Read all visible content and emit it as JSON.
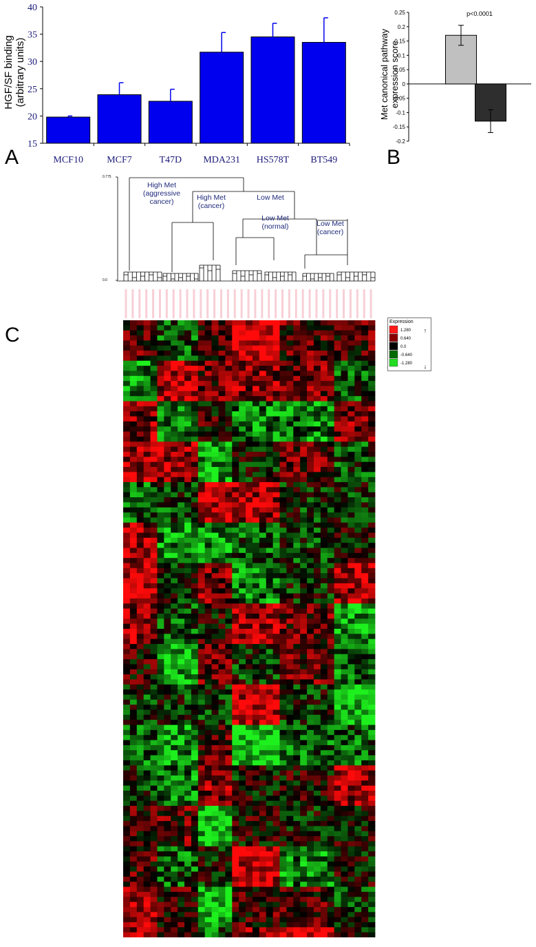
{
  "chart_data": [
    {
      "type": "bar",
      "panel": "A",
      "categories": [
        "MCF10",
        "MCF7",
        "T47D",
        "MDA231",
        "HS578T",
        "BT549"
      ],
      "values": [
        19.8,
        23.9,
        22.7,
        31.7,
        34.5,
        33.5
      ],
      "errors": [
        0.2,
        2.2,
        2.2,
        3.6,
        2.5,
        4.5
      ],
      "ylabel": "HGF/SF binding\n(arbitrary units)",
      "ylim": [
        15,
        40
      ],
      "yticks": [
        "15",
        "20",
        "25",
        "30",
        "35",
        "40"
      ],
      "color": "#0000ee",
      "tick_color": "#1a1a7a"
    },
    {
      "type": "bar",
      "panel": "B",
      "categories": [
        "",
        ""
      ],
      "values": [
        0.17,
        -0.13
      ],
      "errors": [
        0.035,
        0.04
      ],
      "colors": [
        "#c0c0c0",
        "#2e2e2e"
      ],
      "ylabel": "Met canonical pathway\nexpression score",
      "ylim": [
        -0.2,
        0.25
      ],
      "yticks": [
        "0.25",
        "0.2",
        "0.15",
        "0.1",
        "0.05",
        "0",
        "-0.05",
        "-0.1",
        "-0.15",
        "-0.2"
      ],
      "annotation": "p<0.0001"
    },
    {
      "type": "heatmap",
      "panel": "C",
      "dendrogram_scale": [
        "0.775",
        "0.0"
      ],
      "cluster_labels": [
        "High Met\n(aggressive\ncancer)",
        "High Met\n(cancer)",
        "Low Met",
        "Low Met\n(normal)",
        "Low Met\n(cancer)"
      ],
      "legend": {
        "title": "Expression",
        "values": [
          "1.280",
          "0.640",
          "0.0",
          "-0.640",
          "-1.280"
        ],
        "colors": [
          "#ff1a1a",
          "#8a0000",
          "#000000",
          "#006a00",
          "#22dd22"
        ]
      },
      "rows": 122,
      "cols": 37
    }
  ],
  "labels": {
    "panel_a": "A",
    "panel_b": "B",
    "panel_c": "C"
  }
}
